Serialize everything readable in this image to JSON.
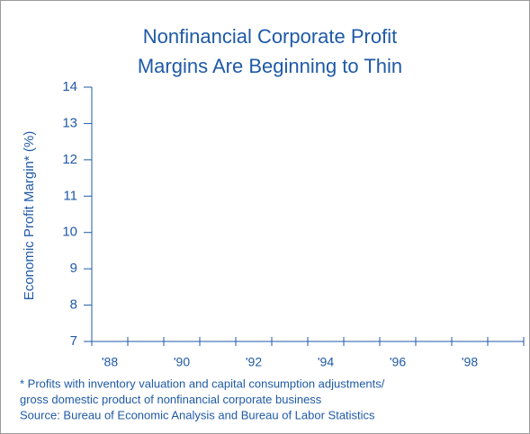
{
  "chart_data": {
    "type": "line",
    "title": [
      "Nonfinancial Corporate Profit",
      "Margins Are Beginning to Thin"
    ],
    "y_label": "Economic Profit Margin* (%)",
    "categories": [
      "'88",
      null,
      "'90",
      null,
      "'92",
      null,
      "'94",
      null,
      "'96",
      null,
      "'98",
      null
    ],
    "ylim": [
      7,
      14
    ],
    "yticks": [
      7,
      8,
      9,
      10,
      11,
      12,
      13,
      14
    ],
    "color": "#1f5aa6",
    "notes": [
      "* Profits with inventory valuation and capital consumption adjustments/",
      "gross domestic product of nonfinancial corporate business",
      "Source: Bureau of Economic Analysis and Bureau of Labor Statistics"
    ]
  }
}
